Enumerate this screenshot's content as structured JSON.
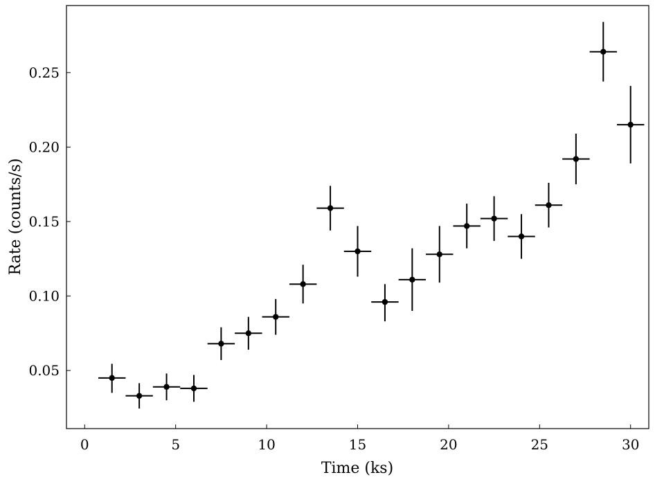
{
  "chart_data": {
    "type": "scatter",
    "title": "",
    "xlabel": "Time (ks)",
    "ylabel": "Rate (counts/s)",
    "xlim": [
      -1,
      31
    ],
    "ylim": [
      0.011,
      0.295
    ],
    "xticks": [
      0,
      5,
      10,
      15,
      20,
      25,
      30
    ],
    "xtick_labels": [
      "0",
      "5",
      "10",
      "15",
      "20",
      "25",
      "30"
    ],
    "yticks": [
      0.05,
      0.1,
      0.15,
      0.2,
      0.25
    ],
    "ytick_labels": [
      "0.05",
      "0.10",
      "0.15",
      "0.20",
      "0.25"
    ],
    "grid": false,
    "legend": "none",
    "x_error": 0.75,
    "series": [
      {
        "points": [
          {
            "x": 1.5,
            "y": 0.045,
            "yerr_low": 0.01,
            "yerr_high": 0.0095
          },
          {
            "x": 3.0,
            "y": 0.033,
            "yerr_low": 0.0085,
            "yerr_high": 0.0085
          },
          {
            "x": 4.5,
            "y": 0.039,
            "yerr_low": 0.009,
            "yerr_high": 0.009
          },
          {
            "x": 6.0,
            "y": 0.038,
            "yerr_low": 0.009,
            "yerr_high": 0.009
          },
          {
            "x": 7.5,
            "y": 0.068,
            "yerr_low": 0.011,
            "yerr_high": 0.011
          },
          {
            "x": 9.0,
            "y": 0.075,
            "yerr_low": 0.011,
            "yerr_high": 0.011
          },
          {
            "x": 10.5,
            "y": 0.086,
            "yerr_low": 0.012,
            "yerr_high": 0.012
          },
          {
            "x": 12.0,
            "y": 0.108,
            "yerr_low": 0.013,
            "yerr_high": 0.013
          },
          {
            "x": 13.5,
            "y": 0.159,
            "yerr_low": 0.015,
            "yerr_high": 0.015
          },
          {
            "x": 15.0,
            "y": 0.13,
            "yerr_low": 0.017,
            "yerr_high": 0.017
          },
          {
            "x": 16.5,
            "y": 0.096,
            "yerr_low": 0.013,
            "yerr_high": 0.012
          },
          {
            "x": 18.0,
            "y": 0.111,
            "yerr_low": 0.021,
            "yerr_high": 0.021
          },
          {
            "x": 19.5,
            "y": 0.128,
            "yerr_low": 0.019,
            "yerr_high": 0.019
          },
          {
            "x": 21.0,
            "y": 0.147,
            "yerr_low": 0.015,
            "yerr_high": 0.015
          },
          {
            "x": 22.5,
            "y": 0.152,
            "yerr_low": 0.015,
            "yerr_high": 0.015
          },
          {
            "x": 24.0,
            "y": 0.14,
            "yerr_low": 0.015,
            "yerr_high": 0.015
          },
          {
            "x": 25.5,
            "y": 0.161,
            "yerr_low": 0.015,
            "yerr_high": 0.015
          },
          {
            "x": 27.0,
            "y": 0.192,
            "yerr_low": 0.017,
            "yerr_high": 0.017
          },
          {
            "x": 28.5,
            "y": 0.264,
            "yerr_low": 0.02,
            "yerr_high": 0.02
          },
          {
            "x": 30.0,
            "y": 0.215,
            "yerr_low": 0.026,
            "yerr_high": 0.026
          }
        ]
      }
    ]
  }
}
